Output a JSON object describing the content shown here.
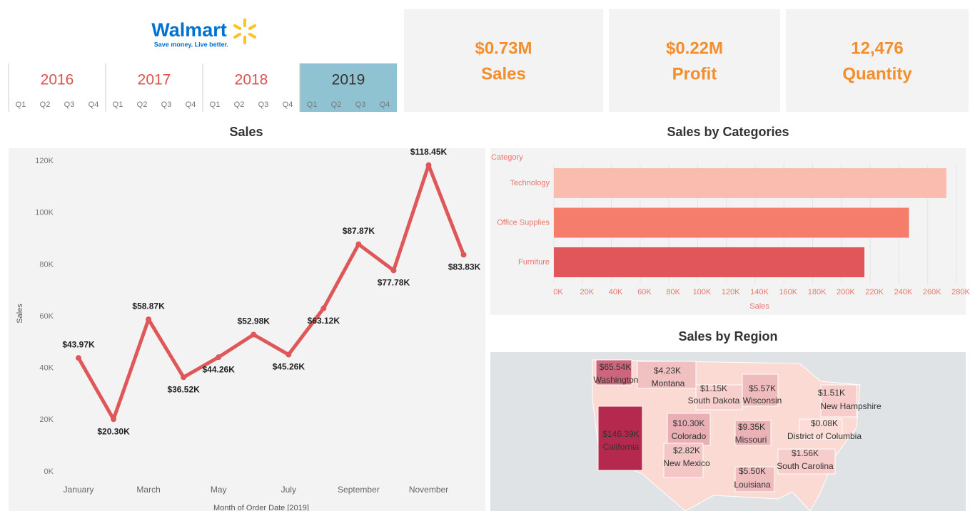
{
  "logo": {
    "name": "Walmart",
    "tagline": "Save money. Live better."
  },
  "years": [
    {
      "label": "2016",
      "selected": false
    },
    {
      "label": "2017",
      "selected": false
    },
    {
      "label": "2018",
      "selected": false
    },
    {
      "label": "2019",
      "selected": true
    }
  ],
  "quarters": [
    "Q1",
    "Q2",
    "Q3",
    "Q4"
  ],
  "kpis": [
    {
      "value": "$0.73M",
      "label": "Sales"
    },
    {
      "value": "$0.22M",
      "label": "Profit"
    },
    {
      "value": "12,476",
      "label": "Quantity"
    }
  ],
  "chart_data": [
    {
      "type": "line",
      "title": "Sales",
      "x_label": "Month of Order Date [2019]",
      "y_label": "Sales",
      "categories": [
        "January",
        null,
        "March",
        null,
        "May",
        null,
        "July",
        null,
        "September",
        null,
        "November",
        null
      ],
      "series": [
        {
          "name": "Sales",
          "color": "#e05759",
          "values": [
            43970,
            20300,
            58870,
            36520,
            44260,
            52980,
            45260,
            63120,
            87870,
            77780,
            118450,
            83830
          ],
          "value_labels": [
            "$43.97K",
            "$20.30K",
            "$58.87K",
            "$36.52K",
            "$44.26K",
            "$52.98K",
            "$45.26K",
            "$63.12K",
            "$87.87K",
            "$77.78K",
            "$118.45K",
            "$83.83K"
          ]
        }
      ],
      "ylim": [
        -4000,
        124000
      ],
      "yticks": [
        {
          "value": 0,
          "label": "0K"
        },
        {
          "value": 20000,
          "label": "20K"
        },
        {
          "value": 40000,
          "label": "40K"
        },
        {
          "value": 60000,
          "label": "60K"
        },
        {
          "value": 80000,
          "label": "80K"
        },
        {
          "value": 100000,
          "label": "100K"
        },
        {
          "value": 120000,
          "label": "120K"
        }
      ],
      "grid": false
    },
    {
      "type": "hbar",
      "title": "Sales by Categories",
      "category_label": "Category",
      "x_label": "Sales",
      "categories": [
        "Technology",
        "Office Supplies",
        "Furniture"
      ],
      "values": [
        273000,
        247000,
        216000
      ],
      "colors": [
        "#fbbcb0",
        "#f47e6b",
        "#e0565b"
      ],
      "xlim": [
        0,
        286000
      ],
      "xticks": [
        {
          "value": 0,
          "label": "0K"
        },
        {
          "value": 20000,
          "label": "20K"
        },
        {
          "value": 40000,
          "label": "40K"
        },
        {
          "value": 60000,
          "label": "60K"
        },
        {
          "value": 80000,
          "label": "80K"
        },
        {
          "value": 100000,
          "label": "100K"
        },
        {
          "value": 120000,
          "label": "120K"
        },
        {
          "value": 140000,
          "label": "140K"
        },
        {
          "value": 160000,
          "label": "160K"
        },
        {
          "value": 180000,
          "label": "180K"
        },
        {
          "value": 200000,
          "label": "200K"
        },
        {
          "value": 220000,
          "label": "220K"
        },
        {
          "value": 240000,
          "label": "240K"
        },
        {
          "value": 260000,
          "label": "260K"
        },
        {
          "value": 280000,
          "label": "280K"
        }
      ],
      "grid": true
    },
    {
      "type": "map",
      "title": "Sales by Region",
      "categories": [
        "Washington",
        "Montana",
        "South Dakota",
        "Wisconsin",
        "New Hampshire",
        "District of Columbia",
        "California",
        "Colorado",
        "Missouri",
        "New Mexico",
        "South Carolina",
        "Louisiana"
      ],
      "values": [
        65540,
        4230,
        1150,
        5570,
        1510,
        80,
        146390,
        10300,
        9350,
        2820,
        1560,
        5500
      ],
      "value_labels": [
        "$65.54K",
        "$4.23K",
        "$1.15K",
        "$5.57K",
        "$1.51K",
        "$0.08K",
        "$146.39K",
        "$10.30K",
        "$9.35K",
        "$2.82K",
        "$1.56K",
        "$5.50K"
      ],
      "color_range": [
        "#fde0d9",
        "#b5294e"
      ]
    }
  ]
}
